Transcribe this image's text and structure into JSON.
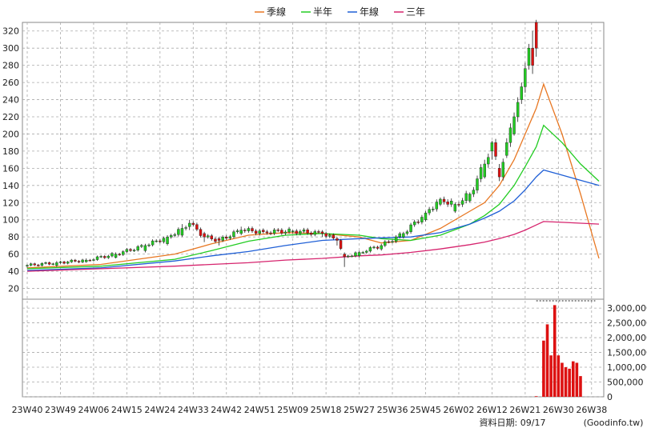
{
  "chart_data": [
    {
      "type": "candlestick",
      "legend": [
        {
          "name": "季線",
          "color": "#e87722"
        },
        {
          "name": "半年",
          "color": "#22cc22"
        },
        {
          "name": "年線",
          "color": "#1f5fd6"
        },
        {
          "name": "三年",
          "color": "#d6246e"
        }
      ],
      "x_ticks": [
        "23W40",
        "23W49",
        "24W06",
        "24W15",
        "24W24",
        "24W33",
        "24W42",
        "24W51",
        "25W09",
        "25W18",
        "25W27",
        "25W36",
        "25W45",
        "26W02",
        "26W12",
        "26W21",
        "26W30",
        "26W38"
      ],
      "y_ticks": [
        20,
        40,
        60,
        80,
        100,
        120,
        140,
        160,
        180,
        200,
        220,
        240,
        260,
        280,
        300,
        320
      ],
      "ylim": [
        0,
        330
      ],
      "up_color": "#22cc22",
      "down_color": "#dd1111",
      "weeks": 155,
      "last_trade_week": 138,
      "candles_sampled": [
        {
          "w": 0,
          "o": 46,
          "c": 47,
          "h": 48,
          "l": 44
        },
        {
          "w": 8,
          "o": 47,
          "c": 50,
          "h": 52,
          "l": 45
        },
        {
          "w": 16,
          "o": 51,
          "c": 53,
          "h": 55,
          "l": 50
        },
        {
          "w": 24,
          "o": 56,
          "c": 60,
          "h": 62,
          "l": 55
        },
        {
          "w": 32,
          "o": 64,
          "c": 70,
          "h": 72,
          "l": 62
        },
        {
          "w": 38,
          "o": 72,
          "c": 80,
          "h": 82,
          "l": 70
        },
        {
          "w": 42,
          "o": 82,
          "c": 90,
          "h": 95,
          "l": 80
        },
        {
          "w": 44,
          "o": 92,
          "c": 96,
          "h": 100,
          "l": 88
        },
        {
          "w": 48,
          "o": 84,
          "c": 80,
          "h": 86,
          "l": 74
        },
        {
          "w": 52,
          "o": 78,
          "c": 76,
          "h": 80,
          "l": 70
        },
        {
          "w": 58,
          "o": 84,
          "c": 88,
          "h": 92,
          "l": 82
        },
        {
          "w": 64,
          "o": 88,
          "c": 86,
          "h": 90,
          "l": 84
        },
        {
          "w": 72,
          "o": 86,
          "c": 87,
          "h": 88,
          "l": 84
        },
        {
          "w": 80,
          "o": 86,
          "c": 84,
          "h": 88,
          "l": 80
        },
        {
          "w": 84,
          "o": 78,
          "c": 76,
          "h": 80,
          "l": 70
        },
        {
          "w": 86,
          "o": 60,
          "c": 57,
          "h": 62,
          "l": 45
        },
        {
          "w": 90,
          "o": 58,
          "c": 62,
          "h": 64,
          "l": 56
        },
        {
          "w": 96,
          "o": 66,
          "c": 70,
          "h": 72,
          "l": 64
        },
        {
          "w": 102,
          "o": 80,
          "c": 84,
          "h": 86,
          "l": 78
        },
        {
          "w": 108,
          "o": 100,
          "c": 108,
          "h": 110,
          "l": 98
        },
        {
          "w": 112,
          "o": 118,
          "c": 124,
          "h": 126,
          "l": 116
        },
        {
          "w": 116,
          "o": 110,
          "c": 118,
          "h": 120,
          "l": 108
        },
        {
          "w": 120,
          "o": 122,
          "c": 130,
          "h": 132,
          "l": 120
        },
        {
          "w": 124,
          "o": 150,
          "c": 165,
          "h": 170,
          "l": 148
        },
        {
          "w": 126,
          "o": 180,
          "c": 190,
          "h": 192,
          "l": 170
        },
        {
          "w": 128,
          "o": 160,
          "c": 150,
          "h": 165,
          "l": 145
        },
        {
          "w": 130,
          "o": 175,
          "c": 190,
          "h": 195,
          "l": 172
        },
        {
          "w": 132,
          "o": 200,
          "c": 220,
          "h": 225,
          "l": 198
        },
        {
          "w": 134,
          "o": 240,
          "c": 255,
          "h": 260,
          "l": 235
        },
        {
          "w": 136,
          "o": 280,
          "c": 300,
          "h": 305,
          "l": 275
        },
        {
          "w": 137,
          "o": 300,
          "c": 280,
          "h": 320,
          "l": 270
        },
        {
          "w": 138,
          "o": 330,
          "c": 300,
          "h": 333,
          "l": 290
        }
      ],
      "ma_series": [
        {
          "name": "季線",
          "x": [
            0,
            20,
            40,
            50,
            60,
            70,
            80,
            90,
            96,
            104,
            112,
            120,
            124,
            128,
            132,
            135,
            138,
            140,
            145,
            150,
            155
          ],
          "y": [
            44,
            48,
            60,
            72,
            82,
            85,
            84,
            80,
            73,
            76,
            90,
            110,
            120,
            140,
            170,
            200,
            230,
            258,
            200,
            130,
            55
          ]
        },
        {
          "name": "半年",
          "x": [
            0,
            20,
            40,
            50,
            60,
            70,
            80,
            90,
            96,
            104,
            112,
            120,
            124,
            128,
            132,
            135,
            138,
            140,
            145,
            150,
            155
          ],
          "y": [
            43,
            46,
            54,
            64,
            75,
            82,
            84,
            82,
            78,
            76,
            82,
            95,
            105,
            118,
            140,
            162,
            185,
            210,
            190,
            165,
            145
          ]
        },
        {
          "name": "年線",
          "x": [
            0,
            20,
            40,
            50,
            60,
            70,
            80,
            90,
            96,
            104,
            112,
            120,
            124,
            128,
            132,
            135,
            138,
            140,
            145,
            150,
            155
          ],
          "y": [
            41,
            44,
            52,
            58,
            63,
            70,
            76,
            78,
            79,
            80,
            85,
            95,
            102,
            110,
            122,
            135,
            150,
            158,
            152,
            146,
            140
          ]
        },
        {
          "name": "三年",
          "x": [
            0,
            20,
            40,
            50,
            60,
            70,
            80,
            90,
            96,
            104,
            112,
            120,
            124,
            128,
            132,
            135,
            138,
            140,
            145,
            150,
            155
          ],
          "y": [
            40,
            43,
            46,
            48,
            50,
            53,
            55,
            58,
            59,
            62,
            66,
            71,
            74,
            78,
            83,
            88,
            94,
            98,
            97,
            96,
            95
          ]
        }
      ]
    },
    {
      "type": "bar",
      "name": "volume",
      "y_ticks": [
        "0",
        "500,000",
        "1,000,000",
        "1,500,000",
        "2,000,000",
        "2,500,000",
        "3,000,000"
      ],
      "ylim": [
        0,
        3300000
      ],
      "color": "#dd1111",
      "x": [
        138,
        140,
        141,
        142,
        143,
        144,
        145,
        146,
        147,
        148,
        149,
        150,
        151,
        152,
        153,
        154
      ],
      "values": [
        20000,
        1900000,
        2450000,
        1400000,
        3100000,
        1400000,
        1150000,
        1000000,
        950000,
        1200000,
        1150000,
        700000,
        0,
        0,
        0,
        0
      ]
    }
  ],
  "footer": {
    "date_label": "資料日期: 09/17",
    "source": "(Goodinfo.tw)"
  }
}
